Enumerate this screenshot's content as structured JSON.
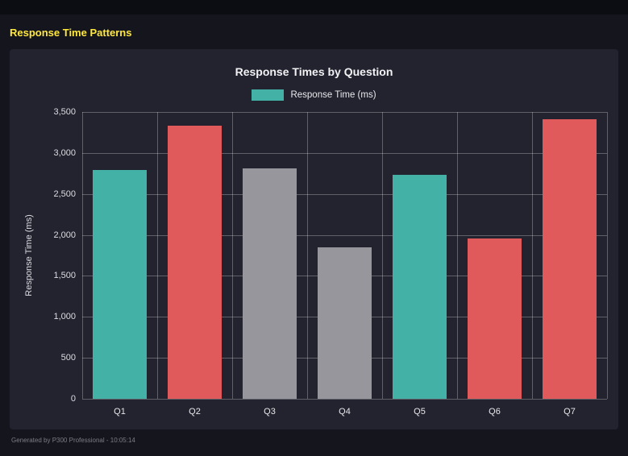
{
  "page": {
    "title": "Response Time Patterns",
    "footer": "Generated by P300 Professional - 10:05:14"
  },
  "colors": {
    "page_background": "#15151e",
    "panel_background": "#23232f",
    "accent_yellow": "#ffe83d",
    "teal": "#44b1a7",
    "red": "#e05a5c",
    "gray": "#96969c"
  },
  "chart_data": {
    "type": "bar",
    "title": "Response Times by Question",
    "legend": {
      "label": "Response Time (ms)",
      "color": "#44b1a7"
    },
    "legend_position": "top",
    "categories": [
      "Q1",
      "Q2",
      "Q3",
      "Q4",
      "Q5",
      "Q6",
      "Q7"
    ],
    "series": [
      {
        "name": "Response Time (ms)",
        "values": [
          2790,
          3330,
          2810,
          1845,
          2730,
          1960,
          3410
        ]
      }
    ],
    "bar_colors": [
      "#44b1a7",
      "#e05a5c",
      "#96969c",
      "#96969c",
      "#44b1a7",
      "#e05a5c",
      "#e05a5c"
    ],
    "xlabel": "",
    "ylabel": "Response Time (ms)",
    "ylim": [
      0,
      3500
    ],
    "ytick_step": 500,
    "ytick_labels": [
      "0",
      "500",
      "1,000",
      "1,500",
      "2,000",
      "2,500",
      "3,000",
      "3,500"
    ],
    "grid": true
  }
}
